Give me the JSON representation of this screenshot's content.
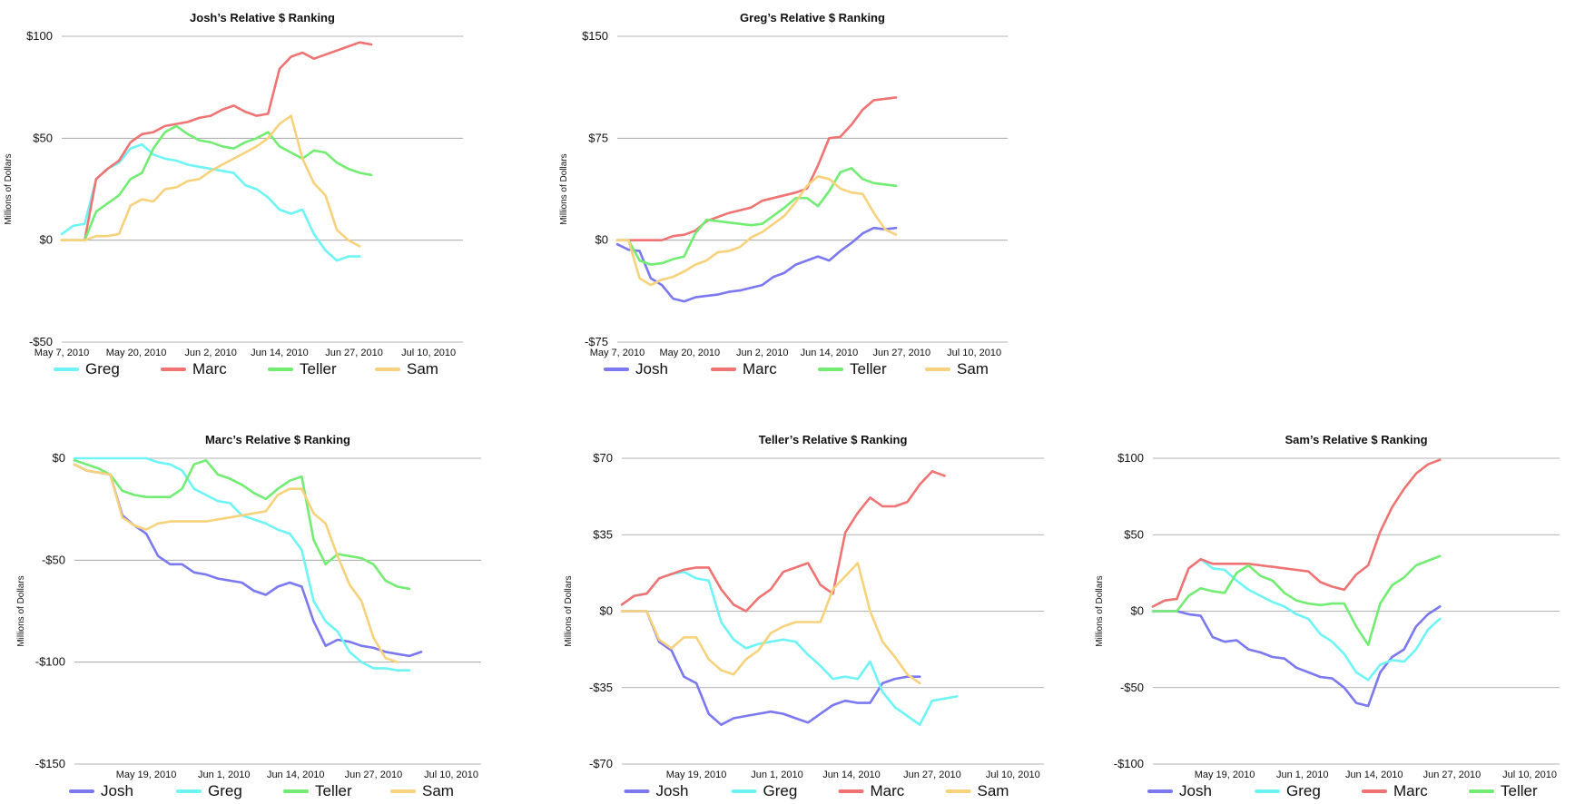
{
  "colors": {
    "Josh": "#7b78f0",
    "Greg": "#6ff4f6",
    "Marc": "#f07373",
    "Teller": "#73ec73",
    "Sam": "#f7d27c"
  },
  "chart_data": [
    {
      "type": "line",
      "title": "Josh’s Relative $ Ranking",
      "ylabel": "Millions of Dollars",
      "ylim": [
        -50,
        100
      ],
      "yticks": [
        100,
        50,
        0,
        -50
      ],
      "ytick_labels": [
        "$100",
        "$50",
        "$0",
        "-$50"
      ],
      "xticks": [
        0,
        13,
        26,
        38,
        51,
        64
      ],
      "xtick_labels": [
        "May 7, 2010",
        "May 20, 2010",
        "Jun 2, 2010",
        "Jun 14, 2010",
        "Jun 27, 2010",
        "Jul 10, 2010"
      ],
      "x": [
        0,
        2,
        4,
        6,
        8,
        10,
        12,
        14,
        16,
        18,
        20,
        22,
        24,
        26,
        28,
        30,
        32,
        34,
        36,
        38,
        40,
        42,
        44,
        46,
        48,
        50,
        52,
        54,
        56,
        58,
        60,
        62,
        64,
        66,
        68,
        70
      ],
      "series": [
        {
          "name": "Greg",
          "values": [
            3,
            7,
            8,
            30,
            35,
            38,
            45,
            47,
            42,
            40,
            39,
            37,
            36,
            35,
            34,
            33,
            27,
            25,
            21,
            15,
            13,
            15,
            3,
            -5,
            -10,
            -8,
            -8,
            null,
            null,
            null,
            null,
            null,
            null,
            null,
            null,
            null
          ]
        },
        {
          "name": "Marc",
          "values": [
            0,
            0,
            0,
            30,
            35,
            39,
            48,
            52,
            53,
            56,
            57,
            58,
            60,
            61,
            64,
            66,
            63,
            61,
            62,
            84,
            90,
            92,
            89,
            91,
            93,
            95,
            97,
            96,
            null,
            null,
            null,
            null,
            null,
            null,
            null,
            null
          ]
        },
        {
          "name": "Teller",
          "values": [
            0,
            0,
            0,
            14,
            18,
            22,
            30,
            33,
            45,
            53,
            56,
            52,
            49,
            48,
            46,
            45,
            48,
            50,
            53,
            46,
            43,
            40,
            44,
            43,
            38,
            35,
            33,
            32,
            null,
            null,
            null,
            null,
            null,
            null,
            null,
            null
          ]
        },
        {
          "name": "Sam",
          "values": [
            0,
            0,
            0,
            2,
            2,
            3,
            17,
            20,
            19,
            25,
            26,
            29,
            30,
            34,
            37,
            40,
            43,
            46,
            50,
            57,
            61,
            40,
            28,
            22,
            5,
            0,
            -3,
            null,
            null,
            null,
            null,
            null,
            null,
            null,
            null,
            null
          ]
        }
      ]
    },
    {
      "type": "line",
      "title": "Greg’s Relative $ Ranking",
      "ylabel": "Millions of Dollars",
      "ylim": [
        -75,
        150
      ],
      "yticks": [
        150,
        75,
        0,
        -75
      ],
      "ytick_labels": [
        "$150",
        "$75",
        "$0",
        "-$75"
      ],
      "xticks": [
        0,
        13,
        26,
        38,
        51,
        64
      ],
      "xtick_labels": [
        "May 7, 2010",
        "May 20, 2010",
        "Jun 2, 2010",
        "Jun 14, 2010",
        "Jun 27, 2010",
        "Jul 10, 2010"
      ],
      "x": [
        0,
        2,
        4,
        6,
        8,
        10,
        12,
        14,
        16,
        18,
        20,
        22,
        24,
        26,
        28,
        30,
        32,
        34,
        36,
        38,
        40,
        42,
        44,
        46,
        48,
        50,
        52,
        54,
        56,
        58,
        60,
        62,
        64,
        66,
        68,
        70
      ],
      "series": [
        {
          "name": "Josh",
          "values": [
            -3,
            -7,
            -8,
            -28,
            -33,
            -43,
            -45,
            -42,
            -41,
            -40,
            -38,
            -37,
            -35,
            -33,
            -27,
            -24,
            -18,
            -15,
            -12,
            -15,
            -8,
            -2,
            5,
            9,
            8,
            9,
            null,
            null,
            null,
            null,
            null,
            null,
            null,
            null,
            null,
            null
          ]
        },
        {
          "name": "Marc",
          "values": [
            0,
            0,
            0,
            0,
            0,
            3,
            4,
            7,
            14,
            17,
            20,
            22,
            24,
            29,
            31,
            33,
            35,
            38,
            55,
            75,
            76,
            85,
            96,
            103,
            104,
            105,
            null,
            null,
            null,
            null,
            null,
            null,
            null,
            null,
            null,
            null
          ]
        },
        {
          "name": "Teller",
          "values": [
            0,
            0,
            -15,
            -18,
            -17,
            -14,
            -12,
            5,
            15,
            14,
            13,
            12,
            11,
            12,
            18,
            24,
            31,
            31,
            25,
            36,
            50,
            53,
            45,
            42,
            41,
            40,
            null,
            null,
            null,
            null,
            null,
            null,
            null,
            null,
            null,
            null
          ]
        },
        {
          "name": "Sam",
          "values": [
            0,
            0,
            -28,
            -33,
            -29,
            -27,
            -23,
            -18,
            -15,
            -9,
            -8,
            -5,
            2,
            6,
            12,
            18,
            28,
            40,
            47,
            45,
            38,
            35,
            34,
            20,
            8,
            4,
            null,
            null,
            null,
            null,
            null,
            null,
            null,
            null,
            null,
            null
          ]
        }
      ]
    },
    {
      "type": "line",
      "title": "Marc’s Relative $ Ranking",
      "ylabel": "Millions of Dollars",
      "ylim": [
        -150,
        0
      ],
      "yticks": [
        0,
        -50,
        -100,
        -150
      ],
      "ytick_labels": [
        "$0",
        "-$50",
        "-$100",
        "-$150"
      ],
      "xticks": [
        12,
        25,
        37,
        50,
        63
      ],
      "xtick_labels": [
        "May 19, 2010",
        "Jun 1, 2010",
        "Jun 14, 2010",
        "Jun 27, 2010",
        "Jul 10, 2010"
      ],
      "x": [
        0,
        2,
        4,
        6,
        8,
        10,
        12,
        14,
        16,
        18,
        20,
        22,
        24,
        26,
        28,
        30,
        32,
        34,
        36,
        38,
        40,
        42,
        44,
        46,
        48,
        50,
        52,
        54,
        56,
        58,
        60,
        62,
        64,
        66,
        68
      ],
      "series": [
        {
          "name": "Josh",
          "values": [
            -3,
            -6,
            -7,
            -8,
            -28,
            -33,
            -37,
            -48,
            -52,
            -52,
            -56,
            -57,
            -59,
            -60,
            -61,
            -65,
            -67,
            -63,
            -61,
            -63,
            -80,
            -92,
            -89,
            -90,
            -92,
            -93,
            -95,
            -96,
            -97,
            -95,
            null,
            null,
            null,
            null,
            null
          ]
        },
        {
          "name": "Greg",
          "values": [
            0,
            0,
            0,
            0,
            0,
            0,
            0,
            -2,
            -3,
            -6,
            -15,
            -18,
            -21,
            -22,
            -28,
            -30,
            -32,
            -35,
            -37,
            -45,
            -70,
            -80,
            -85,
            -95,
            -100,
            -103,
            -103,
            -104,
            -104,
            null,
            null,
            null,
            null,
            null,
            null
          ]
        },
        {
          "name": "Teller",
          "values": [
            -1,
            -3,
            -5,
            -8,
            -16,
            -18,
            -19,
            -19,
            -19,
            -15,
            -3,
            -1,
            -8,
            -10,
            -13,
            -17,
            -20,
            -15,
            -11,
            -9,
            -40,
            -52,
            -47,
            -48,
            -49,
            -52,
            -60,
            -63,
            -64,
            null,
            null,
            null,
            null,
            null,
            null
          ]
        },
        {
          "name": "Sam",
          "values": [
            -3,
            -6,
            -7,
            -8,
            -29,
            -33,
            -35,
            -32,
            -31,
            -31,
            -31,
            -31,
            -30,
            -29,
            -28,
            -27,
            -26,
            -18,
            -15,
            -15,
            -27,
            -32,
            -48,
            -62,
            -70,
            -88,
            -98,
            -100,
            null,
            null,
            null,
            null,
            null,
            null,
            null
          ]
        }
      ]
    },
    {
      "type": "line",
      "title": "Teller’s Relative $ Ranking",
      "ylabel": "Millions of Dollars",
      "ylim": [
        -70,
        70
      ],
      "yticks": [
        70,
        35,
        0,
        -35,
        -70
      ],
      "ytick_labels": [
        "$70",
        "$35",
        "$0",
        "-$35",
        "-$70"
      ],
      "xticks": [
        12,
        25,
        37,
        50,
        63
      ],
      "xtick_labels": [
        "May 19, 2010",
        "Jun 1, 2010",
        "Jun 14, 2010",
        "Jun 27, 2010",
        "Jul 10, 2010"
      ],
      "x": [
        0,
        2,
        4,
        6,
        8,
        10,
        12,
        14,
        16,
        18,
        20,
        22,
        24,
        26,
        28,
        30,
        32,
        34,
        36,
        38,
        40,
        42,
        44,
        46,
        48,
        50,
        52,
        54,
        56,
        58,
        60,
        62,
        64,
        66,
        68
      ],
      "series": [
        {
          "name": "Josh",
          "values": [
            0,
            0,
            0,
            -14,
            -18,
            -30,
            -33,
            -47,
            -52,
            -49,
            -48,
            -47,
            -46,
            -47,
            -49,
            -51,
            -47,
            -43,
            -41,
            -42,
            -42,
            -33,
            -31,
            -30,
            -30,
            null,
            null,
            null,
            null,
            null,
            null,
            null,
            null,
            null,
            null
          ]
        },
        {
          "name": "Greg",
          "values": [
            3,
            7,
            8,
            15,
            17,
            18,
            15,
            14,
            -5,
            -13,
            -17,
            -15,
            -14,
            -13,
            -14,
            -20,
            -25,
            -31,
            -30,
            -31,
            -23,
            -37,
            -44,
            -48,
            -52,
            -41,
            -40,
            -39,
            null,
            null,
            null,
            null,
            null,
            null,
            null
          ]
        },
        {
          "name": "Marc",
          "values": [
            3,
            7,
            8,
            15,
            17,
            19,
            20,
            20,
            10,
            3,
            0,
            6,
            10,
            18,
            20,
            22,
            12,
            8,
            36,
            45,
            52,
            48,
            48,
            50,
            58,
            64,
            62,
            null,
            null,
            null,
            null,
            null,
            null,
            null,
            null
          ]
        },
        {
          "name": "Sam",
          "values": [
            0,
            0,
            0,
            -13,
            -17,
            -12,
            -12,
            -22,
            -27,
            -29,
            -22,
            -18,
            -10,
            -7,
            -5,
            -5,
            -5,
            10,
            16,
            22,
            0,
            -14,
            -21,
            -29,
            -33,
            null,
            null,
            null,
            null,
            null,
            null,
            null,
            null,
            null,
            null
          ]
        }
      ]
    },
    {
      "type": "line",
      "title": "Sam’s Relative $ Ranking",
      "ylabel": "Millions of Dollars",
      "ylim": [
        -100,
        100
      ],
      "yticks": [
        100,
        50,
        0,
        -50,
        -100
      ],
      "ytick_labels": [
        "$100",
        "$50",
        "$0",
        "-$50",
        "-$100"
      ],
      "xticks": [
        12,
        25,
        37,
        50,
        63
      ],
      "xtick_labels": [
        "May 19, 2010",
        "Jun 1, 2010",
        "Jun 14, 2010",
        "Jun 27, 2010",
        "Jul 10, 2010"
      ],
      "x": [
        0,
        2,
        4,
        6,
        8,
        10,
        12,
        14,
        16,
        18,
        20,
        22,
        24,
        26,
        28,
        30,
        32,
        34,
        36,
        38,
        40,
        42,
        44,
        46,
        48,
        50,
        52,
        54,
        56,
        58,
        60,
        62,
        64,
        66,
        68
      ],
      "series": [
        {
          "name": "Josh",
          "values": [
            0,
            0,
            0,
            -2,
            -3,
            -17,
            -20,
            -19,
            -25,
            -27,
            -30,
            -31,
            -37,
            -40,
            -43,
            -44,
            -50,
            -60,
            -62,
            -40,
            -30,
            -25,
            -10,
            -2,
            3,
            null,
            null,
            null,
            null,
            null,
            null,
            null,
            null,
            null,
            null
          ]
        },
        {
          "name": "Greg",
          "values": [
            3,
            7,
            8,
            28,
            34,
            28,
            27,
            20,
            14,
            10,
            6,
            3,
            -2,
            -5,
            -15,
            -20,
            -28,
            -40,
            -45,
            -35,
            -32,
            -33,
            -25,
            -12,
            -5,
            null,
            null,
            null,
            null,
            null,
            null,
            null,
            null,
            null,
            null
          ]
        },
        {
          "name": "Marc",
          "values": [
            3,
            7,
            8,
            28,
            34,
            31,
            31,
            31,
            31,
            30,
            29,
            28,
            27,
            26,
            19,
            16,
            14,
            24,
            30,
            52,
            68,
            80,
            90,
            96,
            99,
            null,
            null,
            null,
            null,
            null,
            null,
            null,
            null,
            null,
            null
          ]
        },
        {
          "name": "Teller",
          "values": [
            0,
            0,
            0,
            10,
            15,
            13,
            12,
            25,
            30,
            23,
            20,
            12,
            7,
            5,
            4,
            5,
            5,
            -10,
            -22,
            5,
            17,
            22,
            30,
            33,
            36,
            null,
            null,
            null,
            null,
            null,
            null,
            null,
            null,
            null,
            null
          ]
        }
      ]
    }
  ]
}
